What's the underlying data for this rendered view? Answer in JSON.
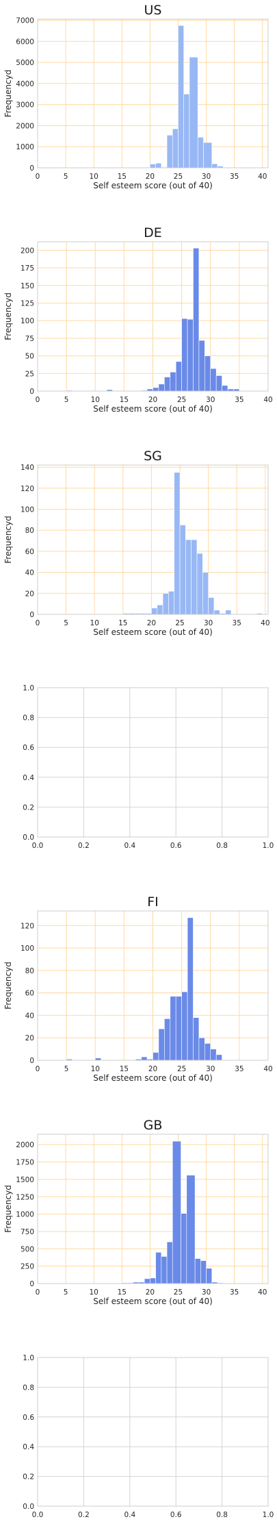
{
  "chart_data": [
    {
      "type": "bar",
      "title": "US",
      "xlabel": "Self esteem score (out of 40)",
      "ylabel": "Frequencyd",
      "xlim": [
        0,
        41
      ],
      "ylim": [
        0,
        7050
      ],
      "xticks": [
        0,
        5,
        10,
        15,
        20,
        25,
        30,
        35,
        40
      ],
      "yticks": [
        0,
        1000,
        2000,
        3000,
        4000,
        5000,
        6000,
        7000
      ],
      "grid": true,
      "grid_color": "#ffd9a0",
      "bar_color": "#98b8f5",
      "bins": [
        {
          "x0": 19.0,
          "x1": 20.0,
          "value": 20
        },
        {
          "x0": 20.0,
          "x1": 21.0,
          "value": 180
        },
        {
          "x0": 21.0,
          "x1": 22.0,
          "value": 220
        },
        {
          "x0": 22.0,
          "x1": 23.0,
          "value": 30
        },
        {
          "x0": 23.0,
          "x1": 24.0,
          "value": 1550
        },
        {
          "x0": 24.0,
          "x1": 25.0,
          "value": 1850
        },
        {
          "x0": 25.0,
          "x1": 26.0,
          "value": 6750
        },
        {
          "x0": 26.0,
          "x1": 27.0,
          "value": 3500
        },
        {
          "x0": 27.0,
          "x1": 28.5,
          "value": 5250
        },
        {
          "x0": 28.5,
          "x1": 29.5,
          "value": 1450
        },
        {
          "x0": 29.5,
          "x1": 31.0,
          "value": 1200
        },
        {
          "x0": 31.0,
          "x1": 32.0,
          "value": 190
        },
        {
          "x0": 32.0,
          "x1": 33.0,
          "value": 80
        },
        {
          "x0": 33.0,
          "x1": 34.0,
          "value": 20
        }
      ]
    },
    {
      "type": "bar",
      "title": "DE",
      "xlabel": "Self esteem score (out of 40)",
      "ylabel": "Frequencyd",
      "xlim": [
        0,
        40
      ],
      "ylim": [
        0,
        212
      ],
      "xticks": [
        0,
        5,
        10,
        15,
        20,
        25,
        30,
        35,
        40
      ],
      "yticks": [
        0,
        25,
        50,
        75,
        100,
        125,
        150,
        175,
        200
      ],
      "grid": true,
      "grid_color": "#ffd9a0",
      "bar_color": "#6a8ae8",
      "bins": [
        {
          "x0": 5.0,
          "x1": 6.0,
          "value": 1
        },
        {
          "x0": 12.0,
          "x1": 13.0,
          "value": 2
        },
        {
          "x0": 18.0,
          "x1": 19.0,
          "value": 1
        },
        {
          "x0": 19.0,
          "x1": 20.0,
          "value": 3
        },
        {
          "x0": 20.0,
          "x1": 21.0,
          "value": 5
        },
        {
          "x0": 21.0,
          "x1": 22.0,
          "value": 10
        },
        {
          "x0": 22.0,
          "x1": 23.0,
          "value": 20
        },
        {
          "x0": 23.0,
          "x1": 24.0,
          "value": 27
        },
        {
          "x0": 24.0,
          "x1": 25.0,
          "value": 42
        },
        {
          "x0": 25.0,
          "x1": 26.0,
          "value": 103
        },
        {
          "x0": 26.0,
          "x1": 27.0,
          "value": 102
        },
        {
          "x0": 27.0,
          "x1": 28.0,
          "value": 203
        },
        {
          "x0": 28.0,
          "x1": 29.0,
          "value": 72
        },
        {
          "x0": 29.0,
          "x1": 30.0,
          "value": 50
        },
        {
          "x0": 30.0,
          "x1": 31.0,
          "value": 32
        },
        {
          "x0": 31.0,
          "x1": 32.0,
          "value": 22
        },
        {
          "x0": 32.0,
          "x1": 33.0,
          "value": 8
        },
        {
          "x0": 33.0,
          "x1": 34.0,
          "value": 3
        },
        {
          "x0": 34.0,
          "x1": 35.0,
          "value": 3
        }
      ]
    },
    {
      "type": "bar",
      "title": "SG",
      "xlabel": "Self esteem score (out of 40)",
      "ylabel": "Frequencyd",
      "xlim": [
        0,
        40.5
      ],
      "ylim": [
        0,
        142
      ],
      "xticks": [
        0,
        5,
        10,
        15,
        20,
        25,
        30,
        35,
        40
      ],
      "yticks": [
        0,
        20,
        40,
        60,
        80,
        100,
        120,
        140
      ],
      "grid": true,
      "grid_color": "#ffd9a0",
      "bar_color": "#98b8f5",
      "bins": [
        {
          "x0": 15.0,
          "x1": 16.0,
          "value": 1
        },
        {
          "x0": 16.0,
          "x1": 17.0,
          "value": 1
        },
        {
          "x0": 17.0,
          "x1": 18.0,
          "value": 1
        },
        {
          "x0": 18.0,
          "x1": 19.0,
          "value": 1
        },
        {
          "x0": 19.0,
          "x1": 20.0,
          "value": 1
        },
        {
          "x0": 20.0,
          "x1": 21.0,
          "value": 6
        },
        {
          "x0": 21.0,
          "x1": 22.0,
          "value": 9
        },
        {
          "x0": 22.0,
          "x1": 23.0,
          "value": 20
        },
        {
          "x0": 23.0,
          "x1": 24.0,
          "value": 22
        },
        {
          "x0": 24.0,
          "x1": 25.0,
          "value": 135
        },
        {
          "x0": 25.0,
          "x1": 26.0,
          "value": 85
        },
        {
          "x0": 26.0,
          "x1": 27.0,
          "value": 71
        },
        {
          "x0": 27.0,
          "x1": 28.0,
          "value": 71
        },
        {
          "x0": 28.0,
          "x1": 29.0,
          "value": 58
        },
        {
          "x0": 29.0,
          "x1": 30.0,
          "value": 40
        },
        {
          "x0": 30.0,
          "x1": 31.0,
          "value": 16
        },
        {
          "x0": 31.0,
          "x1": 32.0,
          "value": 4
        },
        {
          "x0": 32.0,
          "x1": 33.0,
          "value": 1
        },
        {
          "x0": 33.0,
          "x1": 34.0,
          "value": 4
        },
        {
          "x0": 38.5,
          "x1": 39.5,
          "value": 1
        }
      ]
    },
    {
      "type": "empty",
      "title": "",
      "xlim": [
        0,
        1
      ],
      "ylim": [
        0,
        1
      ],
      "xticks": [
        0,
        0.2,
        0.4,
        0.6,
        0.8,
        1
      ],
      "yticks": [
        0,
        0.2,
        0.4,
        0.6,
        0.8,
        1
      ],
      "xtick_labels": [
        "0.0",
        "0.2",
        "0.4",
        "0.6",
        "0.8",
        "1.0"
      ],
      "ytick_labels": [
        "0.0",
        "0.2",
        "0.4",
        "0.6",
        "0.8",
        "1.0"
      ],
      "grid": true,
      "grid_color": "#d4d4d4",
      "bins": []
    },
    {
      "type": "bar",
      "title": "FI",
      "xlabel": "Self esteem score (out of 40)",
      "ylabel": "Frequencyd",
      "xlim": [
        0,
        40
      ],
      "ylim": [
        0,
        133
      ],
      "xticks": [
        0,
        5,
        10,
        15,
        20,
        25,
        30,
        35,
        40
      ],
      "yticks": [
        0,
        20,
        40,
        60,
        80,
        100,
        120
      ],
      "grid": true,
      "grid_color": "#ffd9a0",
      "bar_color": "#6a8ae8",
      "bins": [
        {
          "x0": 5.0,
          "x1": 6.0,
          "value": 1
        },
        {
          "x0": 10.0,
          "x1": 11.0,
          "value": 2
        },
        {
          "x0": 17.0,
          "x1": 18.0,
          "value": 1
        },
        {
          "x0": 18.0,
          "x1": 19.0,
          "value": 3
        },
        {
          "x0": 19.0,
          "x1": 20.0,
          "value": 1
        },
        {
          "x0": 20.0,
          "x1": 21.0,
          "value": 7
        },
        {
          "x0": 21.0,
          "x1": 22.0,
          "value": 28
        },
        {
          "x0": 22.0,
          "x1": 23.0,
          "value": 37
        },
        {
          "x0": 23.0,
          "x1": 24.0,
          "value": 57
        },
        {
          "x0": 24.0,
          "x1": 25.0,
          "value": 57
        },
        {
          "x0": 25.0,
          "x1": 26.0,
          "value": 61
        },
        {
          "x0": 26.0,
          "x1": 27.0,
          "value": 127
        },
        {
          "x0": 27.0,
          "x1": 28.0,
          "value": 38
        },
        {
          "x0": 28.0,
          "x1": 29.0,
          "value": 20
        },
        {
          "x0": 29.0,
          "x1": 30.0,
          "value": 15
        },
        {
          "x0": 30.0,
          "x1": 31.0,
          "value": 10
        },
        {
          "x0": 31.0,
          "x1": 32.0,
          "value": 5
        }
      ]
    },
    {
      "type": "bar",
      "title": "GB",
      "xlabel": "Self esteem score (out of 40)",
      "ylabel": "Frequencyd",
      "xlim": [
        0,
        41
      ],
      "ylim": [
        0,
        2150
      ],
      "xticks": [
        0,
        5,
        10,
        15,
        20,
        25,
        30,
        35,
        40
      ],
      "yticks": [
        0,
        250,
        500,
        750,
        1000,
        1250,
        1500,
        1750,
        2000
      ],
      "grid": true,
      "grid_color": "#ffd9a0",
      "bar_color": "#6a8ae8",
      "bins": [
        {
          "x0": 15.0,
          "x1": 16.0,
          "value": 10
        },
        {
          "x0": 16.0,
          "x1": 17.0,
          "value": 10
        },
        {
          "x0": 17.0,
          "x1": 18.0,
          "value": 20
        },
        {
          "x0": 18.0,
          "x1": 19.0,
          "value": 20
        },
        {
          "x0": 19.0,
          "x1": 20.0,
          "value": 70
        },
        {
          "x0": 20.0,
          "x1": 21.0,
          "value": 80
        },
        {
          "x0": 21.0,
          "x1": 22.0,
          "value": 450
        },
        {
          "x0": 22.0,
          "x1": 23.0,
          "value": 390
        },
        {
          "x0": 23.0,
          "x1": 24.0,
          "value": 600
        },
        {
          "x0": 24.0,
          "x1": 25.5,
          "value": 2050
        },
        {
          "x0": 25.5,
          "x1": 26.5,
          "value": 1010
        },
        {
          "x0": 26.5,
          "x1": 28.0,
          "value": 1560
        },
        {
          "x0": 28.0,
          "x1": 29.0,
          "value": 360
        },
        {
          "x0": 29.0,
          "x1": 30.0,
          "value": 330
        },
        {
          "x0": 30.0,
          "x1": 31.0,
          "value": 220
        },
        {
          "x0": 31.0,
          "x1": 32.0,
          "value": 20
        },
        {
          "x0": 32.0,
          "x1": 33.0,
          "value": 10
        }
      ]
    },
    {
      "type": "empty",
      "title": "",
      "xlim": [
        0,
        1
      ],
      "ylim": [
        0,
        1
      ],
      "xticks": [
        0,
        0.2,
        0.4,
        0.6,
        0.8,
        1
      ],
      "yticks": [
        0,
        0.2,
        0.4,
        0.6,
        0.8,
        1
      ],
      "xtick_labels": [
        "0.0",
        "0.2",
        "0.4",
        "0.6",
        "0.8",
        "1.0"
      ],
      "ytick_labels": [
        "0.0",
        "0.2",
        "0.4",
        "0.6",
        "0.8",
        "1.0"
      ],
      "grid": true,
      "grid_color": "#d4d4d4",
      "bins": []
    }
  ]
}
